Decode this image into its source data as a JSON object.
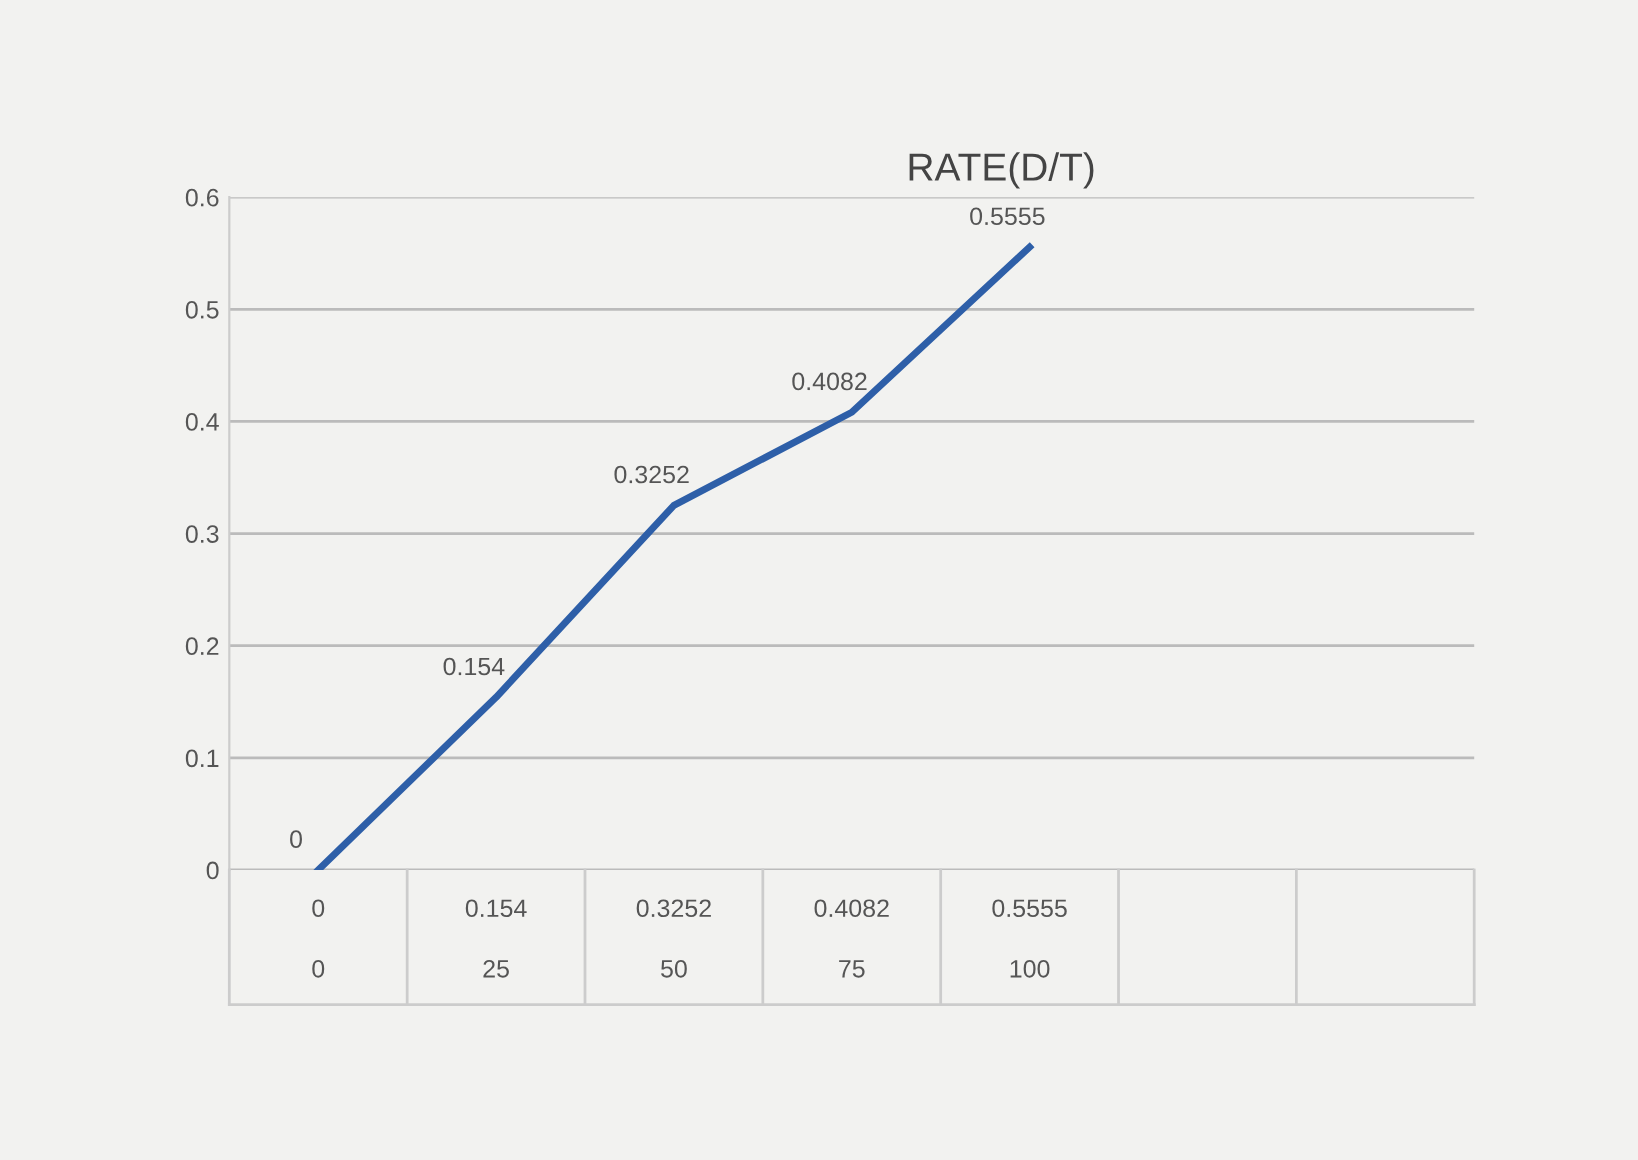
{
  "chart_data": {
    "type": "line",
    "title": "RATE(D/T)",
    "categories": [
      "0",
      "25",
      "50",
      "75",
      "100",
      null,
      null
    ],
    "series": [
      {
        "color": "#2e5fa8",
        "values": [
          0,
          0.154,
          0.3252,
          0.4082,
          0.5555,
          null,
          null
        ],
        "value_labels": [
          "0",
          "0.154",
          "0.3252",
          "0.4082",
          "0.5555",
          null,
          null
        ]
      }
    ],
    "ylim": [
      0,
      0.6
    ],
    "yticks": [
      0,
      0.1,
      0.2,
      0.3,
      0.4,
      0.5,
      0.6
    ],
    "grid": "y",
    "marker": "none",
    "line_style": "solid"
  }
}
